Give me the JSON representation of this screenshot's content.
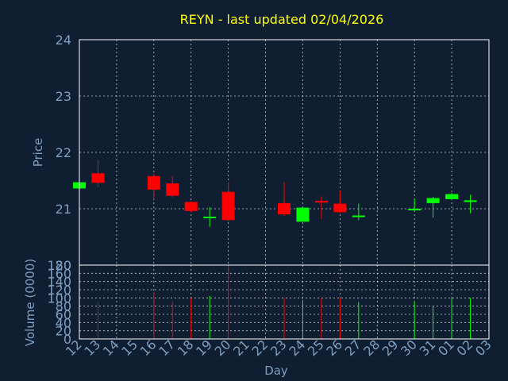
{
  "chart_data": {
    "type": "candlestick",
    "title": "REYN - last updated 02/04/2026",
    "xlabel": "Day",
    "ylabel": "Price",
    "volume_label": "Volume (0000)",
    "ylim": [
      20,
      24
    ],
    "volume_ylim": [
      0,
      180
    ],
    "price_ticks": [
      "20",
      "21",
      "22",
      "23",
      "24"
    ],
    "volume_ticks": [
      "0",
      "20",
      "40",
      "60",
      "80",
      "100",
      "120",
      "140",
      "160",
      "180"
    ],
    "x_ticks": [
      "12",
      "13",
      "14",
      "15",
      "16",
      "17",
      "18",
      "19",
      "20",
      "21",
      "22",
      "23",
      "24",
      "25",
      "26",
      "27",
      "28",
      "29",
      "30",
      "31",
      "01",
      "02",
      "03"
    ],
    "grid": true,
    "colors": {
      "up": "#00ff00",
      "down": "#ff0000",
      "background": "#0f1e31",
      "title": "#ffff00",
      "text": "#7f9fc0"
    },
    "candles": [
      {
        "day": "12",
        "open": 21.36,
        "high": 21.47,
        "low": 21.36,
        "close": 21.47,
        "volume": 70
      },
      {
        "day": "13",
        "open": 21.63,
        "high": 21.87,
        "low": 21.38,
        "close": 21.46,
        "volume": 90
      },
      {
        "day": "16",
        "open": 21.58,
        "high": 21.63,
        "low": 21.17,
        "close": 21.34,
        "volume": 115
      },
      {
        "day": "17",
        "open": 21.45,
        "high": 21.58,
        "low": 21.2,
        "close": 21.23,
        "volume": 90
      },
      {
        "day": "18",
        "open": 21.12,
        "high": 21.13,
        "low": 20.94,
        "close": 20.96,
        "volume": 100
      },
      {
        "day": "19",
        "open": 20.84,
        "high": 21.03,
        "low": 20.68,
        "close": 20.86,
        "volume": 105
      },
      {
        "day": "20",
        "open": 21.3,
        "high": 21.47,
        "low": 20.78,
        "close": 20.8,
        "volume": 180
      },
      {
        "day": "23",
        "open": 21.1,
        "high": 21.47,
        "low": 20.87,
        "close": 20.9,
        "volume": 100
      },
      {
        "day": "24",
        "open": 20.77,
        "high": 21.03,
        "low": 20.77,
        "close": 21.02,
        "volume": 95
      },
      {
        "day": "25",
        "open": 21.14,
        "high": 21.22,
        "low": 20.82,
        "close": 21.11,
        "volume": 100
      },
      {
        "day": "26",
        "open": 21.09,
        "high": 21.32,
        "low": 20.92,
        "close": 20.94,
        "volume": 100
      },
      {
        "day": "27",
        "open": 20.86,
        "high": 21.09,
        "low": 20.8,
        "close": 20.88,
        "volume": 90
      },
      {
        "day": "30",
        "open": 20.98,
        "high": 21.18,
        "low": 20.96,
        "close": 21.0,
        "volume": 90
      },
      {
        "day": "31",
        "open": 21.1,
        "high": 21.21,
        "low": 20.84,
        "close": 21.19,
        "volume": 80
      },
      {
        "day": "01",
        "open": 21.17,
        "high": 21.28,
        "low": 21.17,
        "close": 21.26,
        "volume": 100
      },
      {
        "day": "02",
        "open": 21.12,
        "high": 21.25,
        "low": 20.92,
        "close": 21.15,
        "volume": 100
      }
    ]
  }
}
